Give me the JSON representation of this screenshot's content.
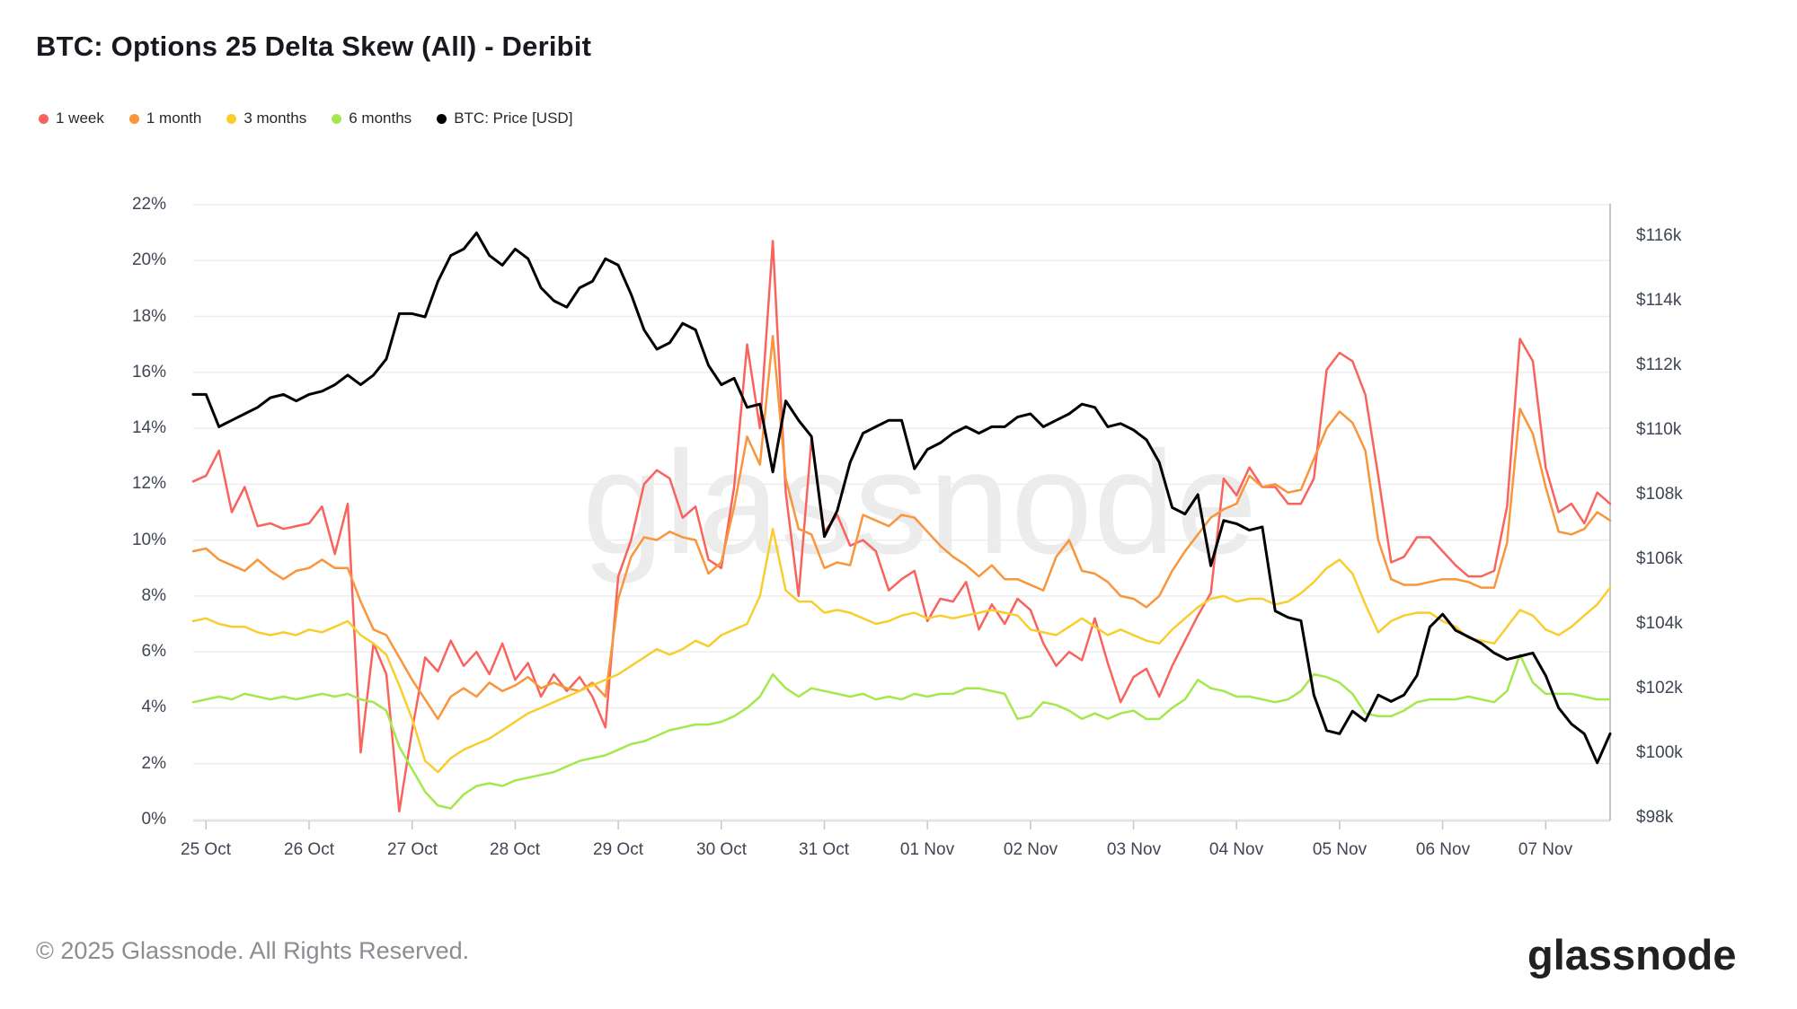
{
  "header": {
    "title": "BTC: Options 25 Delta Skew (All) - Deribit"
  },
  "legend": [
    {
      "label": "1 week",
      "color": "#F9635E"
    },
    {
      "label": "1 month",
      "color": "#F9953B"
    },
    {
      "label": "3 months",
      "color": "#F8CE2F"
    },
    {
      "label": "6 months",
      "color": "#A4E84D"
    },
    {
      "label": "BTC: Price [USD]",
      "color": "#000000"
    }
  ],
  "watermark": "glassnode",
  "footer": {
    "copyright": "© 2025 Glassnode. All Rights Reserved.",
    "logo": "glassnode"
  },
  "chart_data": {
    "type": "line",
    "title": "BTC: Options 25 Delta Skew (All) - Deribit",
    "grid": "horizontal-only",
    "legend_position": "top-left",
    "x_start": "24 Oct 21:00",
    "x_step_hours": 3,
    "x_tick_labels": [
      "25 Oct",
      "26 Oct",
      "27 Oct",
      "28 Oct",
      "29 Oct",
      "30 Oct",
      "31 Oct",
      "01 Nov",
      "02 Nov",
      "03 Nov",
      "04 Nov",
      "05 Nov",
      "06 Nov",
      "07 Nov"
    ],
    "x_tick_indices": [
      1,
      9,
      17,
      25,
      33,
      41,
      49,
      57,
      65,
      73,
      81,
      89,
      97,
      105
    ],
    "left_axis": {
      "unit": "%",
      "min": 0,
      "max": 22,
      "ticks": [
        "0%",
        "2%",
        "4%",
        "6%",
        "8%",
        "10%",
        "12%",
        "14%",
        "16%",
        "18%",
        "20%",
        "22%"
      ],
      "tick_values": [
        0,
        2,
        4,
        6,
        8,
        10,
        12,
        14,
        16,
        18,
        20,
        22
      ]
    },
    "right_axis": {
      "unit": "USD (thousands)",
      "min": 98,
      "max": 116,
      "ticks": [
        "$98k",
        "$100k",
        "$102k",
        "$104k",
        "$106k",
        "$108k",
        "$110k",
        "$112k",
        "$114k",
        "$116k"
      ],
      "tick_values": [
        98,
        100,
        102,
        104,
        106,
        108,
        110,
        112,
        114,
        116
      ]
    },
    "series": [
      {
        "name": "1 week",
        "axis": "left",
        "color": "#F9635E",
        "values": [
          12.1,
          12.3,
          13.2,
          11.0,
          11.9,
          10.5,
          10.6,
          10.4,
          10.5,
          10.6,
          11.2,
          9.5,
          11.3,
          2.4,
          6.3,
          5.2,
          0.3,
          3.2,
          5.8,
          5.3,
          6.4,
          5.5,
          6.0,
          5.2,
          6.3,
          5.0,
          5.6,
          4.4,
          5.2,
          4.6,
          5.1,
          4.4,
          3.3,
          8.7,
          10.0,
          12.0,
          12.5,
          12.2,
          10.8,
          11.2,
          9.3,
          9.0,
          11.9,
          17.0,
          14.0,
          20.7,
          11.7,
          8.0,
          13.6,
          10.3,
          10.9,
          9.8,
          10.0,
          9.6,
          8.2,
          8.6,
          8.9,
          7.1,
          7.9,
          7.8,
          8.5,
          6.8,
          7.7,
          7.0,
          7.9,
          7.5,
          6.3,
          5.5,
          6.0,
          5.7,
          7.2,
          5.6,
          4.2,
          5.1,
          5.4,
          4.4,
          5.5,
          6.4,
          7.3,
          8.1,
          12.2,
          11.6,
          12.6,
          11.9,
          11.9,
          11.3,
          11.3,
          12.2,
          16.1,
          16.7,
          16.4,
          15.2,
          12.3,
          9.2,
          9.4,
          10.1,
          10.1,
          9.6,
          9.1,
          8.7,
          8.7,
          8.9,
          11.2,
          17.2,
          16.4,
          12.6,
          11.0,
          11.3,
          10.6,
          11.7,
          11.3
        ]
      },
      {
        "name": "1 month",
        "axis": "left",
        "color": "#F9953B",
        "values": [
          9.6,
          9.7,
          9.3,
          9.1,
          8.9,
          9.3,
          8.9,
          8.6,
          8.9,
          9.0,
          9.3,
          9.0,
          9.0,
          7.8,
          6.8,
          6.6,
          5.8,
          5.0,
          4.3,
          3.6,
          4.4,
          4.7,
          4.4,
          4.9,
          4.6,
          4.8,
          5.1,
          4.7,
          4.9,
          4.7,
          4.6,
          4.9,
          4.4,
          7.9,
          9.4,
          10.1,
          10.0,
          10.3,
          10.1,
          10.0,
          8.8,
          9.2,
          11.2,
          13.7,
          12.7,
          17.3,
          12.2,
          10.4,
          10.2,
          9.0,
          9.2,
          9.1,
          10.9,
          10.7,
          10.5,
          10.9,
          10.8,
          10.3,
          9.8,
          9.4,
          9.1,
          8.7,
          9.1,
          8.6,
          8.6,
          8.4,
          8.2,
          9.4,
          10.0,
          8.9,
          8.8,
          8.5,
          8.0,
          7.9,
          7.6,
          8.0,
          8.9,
          9.6,
          10.2,
          10.8,
          11.1,
          11.3,
          12.3,
          11.9,
          12.0,
          11.7,
          11.8,
          12.9,
          14.0,
          14.6,
          14.2,
          13.2,
          10.0,
          8.6,
          8.4,
          8.4,
          8.5,
          8.6,
          8.6,
          8.5,
          8.3,
          8.3,
          9.9,
          14.7,
          13.8,
          11.9,
          10.3,
          10.2,
          10.4,
          11.0,
          10.7
        ]
      },
      {
        "name": "3 months",
        "axis": "left",
        "color": "#F8CE2F",
        "values": [
          7.1,
          7.2,
          7.0,
          6.9,
          6.9,
          6.7,
          6.6,
          6.7,
          6.6,
          6.8,
          6.7,
          6.9,
          7.1,
          6.6,
          6.3,
          5.9,
          4.8,
          3.6,
          2.1,
          1.7,
          2.2,
          2.5,
          2.7,
          2.9,
          3.2,
          3.5,
          3.8,
          4.0,
          4.2,
          4.4,
          4.6,
          4.8,
          5.0,
          5.2,
          5.5,
          5.8,
          6.1,
          5.9,
          6.1,
          6.4,
          6.2,
          6.6,
          6.8,
          7.0,
          8.0,
          10.4,
          8.2,
          7.8,
          7.8,
          7.4,
          7.5,
          7.4,
          7.2,
          7.0,
          7.1,
          7.3,
          7.4,
          7.2,
          7.3,
          7.2,
          7.3,
          7.4,
          7.5,
          7.4,
          7.3,
          6.8,
          6.7,
          6.6,
          6.9,
          7.2,
          6.9,
          6.6,
          6.8,
          6.6,
          6.4,
          6.3,
          6.8,
          7.2,
          7.6,
          7.9,
          8.0,
          7.8,
          7.9,
          7.9,
          7.7,
          7.8,
          8.1,
          8.5,
          9.0,
          9.3,
          8.8,
          7.7,
          6.7,
          7.1,
          7.3,
          7.4,
          7.4,
          7.1,
          6.9,
          6.5,
          6.4,
          6.3,
          6.9,
          7.5,
          7.3,
          6.8,
          6.6,
          6.9,
          7.3,
          7.7,
          8.3
        ]
      },
      {
        "name": "6 months",
        "axis": "left",
        "color": "#A4E84D",
        "values": [
          4.2,
          4.3,
          4.4,
          4.3,
          4.5,
          4.4,
          4.3,
          4.4,
          4.3,
          4.4,
          4.5,
          4.4,
          4.5,
          4.3,
          4.2,
          3.9,
          2.6,
          1.8,
          1.0,
          0.5,
          0.4,
          0.9,
          1.2,
          1.3,
          1.2,
          1.4,
          1.5,
          1.6,
          1.7,
          1.9,
          2.1,
          2.2,
          2.3,
          2.5,
          2.7,
          2.8,
          3.0,
          3.2,
          3.3,
          3.4,
          3.4,
          3.5,
          3.7,
          4.0,
          4.4,
          5.2,
          4.7,
          4.4,
          4.7,
          4.6,
          4.5,
          4.4,
          4.5,
          4.3,
          4.4,
          4.3,
          4.5,
          4.4,
          4.5,
          4.5,
          4.7,
          4.7,
          4.6,
          4.5,
          3.6,
          3.7,
          4.2,
          4.1,
          3.9,
          3.6,
          3.8,
          3.6,
          3.8,
          3.9,
          3.6,
          3.6,
          4.0,
          4.3,
          5.0,
          4.7,
          4.6,
          4.4,
          4.4,
          4.3,
          4.2,
          4.3,
          4.6,
          5.2,
          5.1,
          4.9,
          4.5,
          3.8,
          3.7,
          3.7,
          3.9,
          4.2,
          4.3,
          4.3,
          4.3,
          4.4,
          4.3,
          4.2,
          4.6,
          5.9,
          4.9,
          4.5,
          4.5,
          4.5,
          4.4,
          4.3,
          4.3
        ]
      },
      {
        "name": "BTC: Price [USD]",
        "axis": "right",
        "color": "#000000",
        "values": [
          111.1,
          111.1,
          110.1,
          110.3,
          110.5,
          110.7,
          111.0,
          111.1,
          110.9,
          111.1,
          111.2,
          111.4,
          111.7,
          111.4,
          111.7,
          112.2,
          113.6,
          113.6,
          113.5,
          114.6,
          115.4,
          115.6,
          116.1,
          115.4,
          115.1,
          115.6,
          115.3,
          114.4,
          114.0,
          113.8,
          114.4,
          114.6,
          115.3,
          115.1,
          114.2,
          113.1,
          112.5,
          112.7,
          113.3,
          113.1,
          112.0,
          111.4,
          111.6,
          110.7,
          110.8,
          108.7,
          110.9,
          110.3,
          109.8,
          106.7,
          107.5,
          109.0,
          109.9,
          110.1,
          110.3,
          110.3,
          108.8,
          109.4,
          109.6,
          109.9,
          110.1,
          109.9,
          110.1,
          110.1,
          110.4,
          110.5,
          110.1,
          110.3,
          110.5,
          110.8,
          110.7,
          110.1,
          110.2,
          110.0,
          109.7,
          109.0,
          107.6,
          107.4,
          108.0,
          105.8,
          107.2,
          107.1,
          106.9,
          107.0,
          104.4,
          104.2,
          104.1,
          101.8,
          100.7,
          100.6,
          101.3,
          101.0,
          101.8,
          101.6,
          101.8,
          102.4,
          103.9,
          104.3,
          103.8,
          103.6,
          103.4,
          103.1,
          102.9,
          103.0,
          103.1,
          102.4,
          101.4,
          100.9,
          100.6,
          99.7,
          100.6
        ]
      }
    ]
  }
}
